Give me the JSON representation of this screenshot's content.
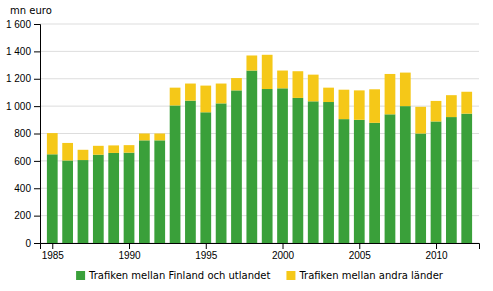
{
  "chart_data": {
    "type": "bar",
    "stacked": true,
    "ylabel": "mn euro",
    "x": [
      1985,
      1986,
      1987,
      1988,
      1989,
      1990,
      1991,
      1992,
      1993,
      1994,
      1995,
      1996,
      1997,
      1998,
      1999,
      2000,
      2001,
      2002,
      2003,
      2004,
      2005,
      2006,
      2007,
      2008,
      2009,
      2010,
      2011,
      2012
    ],
    "series": [
      {
        "name": "Trafiken mellan Finland och utlandet",
        "color": "#3aa03a",
        "values": [
          648,
          603,
          606,
          645,
          658,
          660,
          750,
          750,
          1005,
          1040,
          955,
          1020,
          1115,
          1260,
          1125,
          1130,
          1060,
          1035,
          1030,
          905,
          900,
          878,
          940,
          1000,
          800,
          888,
          920,
          945
        ]
      },
      {
        "name": "Trafiken mellan andra länder",
        "color": "#f5c818",
        "values": [
          155,
          128,
          75,
          65,
          55,
          55,
          50,
          50,
          130,
          125,
          195,
          145,
          90,
          110,
          250,
          130,
          195,
          195,
          105,
          215,
          215,
          245,
          295,
          245,
          195,
          150,
          160,
          160
        ]
      }
    ],
    "xlim": [
      1984.2,
      2012.8
    ],
    "xticks": [
      1985,
      1990,
      1995,
      2000,
      2005,
      2010
    ],
    "ylim": [
      0,
      1600
    ],
    "yticks": [
      0,
      200,
      400,
      600,
      800,
      {
        "value": 1000,
        "label": "1 000"
      },
      {
        "value": 1200,
        "label": "1 200"
      },
      {
        "value": 1400,
        "label": "1 400"
      },
      {
        "value": 1600,
        "label": "1 600"
      }
    ],
    "grid": true,
    "legend": "bottom"
  }
}
